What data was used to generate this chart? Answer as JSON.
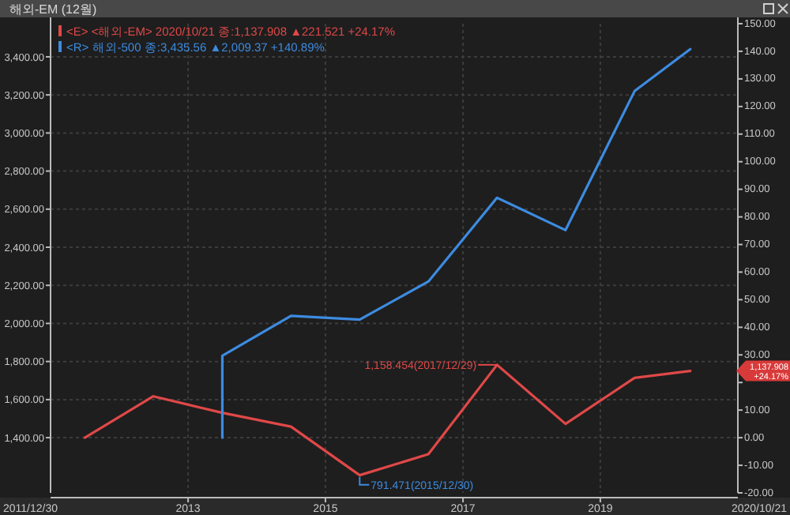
{
  "chart_data": {
    "type": "line",
    "title": "해외-EM (12월)",
    "x": [
      "2011-12-30",
      "2012-12-28",
      "2013-12-30",
      "2014-12-30",
      "2015-12-30",
      "2016-12-29",
      "2017-12-29",
      "2018-12-28",
      "2019-12-30",
      "2020-10-21"
    ],
    "series": [
      {
        "name": "<E> <해외-EM> 2020/10/21 종:1,137.908 ▲221.521 +24.17%",
        "color": "#e04848",
        "axis": "y2",
        "values": [
          0,
          15,
          9,
          4,
          -13.6,
          -6,
          26.4,
          5,
          21.7,
          24.2
        ]
      },
      {
        "name": "<R> 해외-500 종:3,435.56 ▲2,009.37 +140.89%",
        "color": "#3d8be0",
        "x": [
          "2013-12-30",
          "2013-12-30",
          "2014-12-30",
          "2015-12-30",
          "2016-12-29",
          "2017-12-29",
          "2018-12-28",
          "2019-12-30",
          "2020-10-21"
        ],
        "values": [
          1400,
          1830,
          2040,
          2020,
          2220,
          2660,
          2490,
          3220,
          3440
        ]
      }
    ],
    "xlim": [
      "2011-07-01",
      "2021-07-01"
    ],
    "xticks": [
      {
        "value": "2013-07-01",
        "label": "2013"
      },
      {
        "value": "2015-07-01",
        "label": "2015"
      },
      {
        "value": "2017-07-01",
        "label": "2017"
      },
      {
        "value": "2019-07-01",
        "label": "2019"
      }
    ],
    "ylim": [
      1110,
      3574
    ],
    "yticks": [
      {
        "value": 1400,
        "label": "1,400.00"
      },
      {
        "value": 1600,
        "label": "1,600.00"
      },
      {
        "value": 1800,
        "label": "1,800.00"
      },
      {
        "value": 2000,
        "label": "2,000.00"
      },
      {
        "value": 2200,
        "label": "2,200.00"
      },
      {
        "value": 2400,
        "label": "2,400.00"
      },
      {
        "value": 2600,
        "label": "2,600.00"
      },
      {
        "value": 2800,
        "label": "2,800.00"
      },
      {
        "value": 3000,
        "label": "3,000.00"
      },
      {
        "value": 3200,
        "label": "3,200.00"
      },
      {
        "value": 3400,
        "label": "3,400.00"
      }
    ],
    "y2lim": [
      -20,
      150
    ],
    "y2ticks": [
      {
        "value": -20,
        "label": "-20.00"
      },
      {
        "value": -10,
        "label": "-10.00"
      },
      {
        "value": 0,
        "label": "0.00"
      },
      {
        "value": 10,
        "label": "10.00"
      },
      {
        "value": 20,
        "label": null
      },
      {
        "value": 30,
        "label": "30.00"
      },
      {
        "value": 40,
        "label": "40.00"
      },
      {
        "value": 50,
        "label": "50.00"
      },
      {
        "value": 60,
        "label": "60.00"
      },
      {
        "value": 70,
        "label": "70.00"
      },
      {
        "value": 80,
        "label": "80.00"
      },
      {
        "value": 90,
        "label": "90.00"
      },
      {
        "value": 100,
        "label": "100.00"
      },
      {
        "value": 110,
        "label": "110.00"
      },
      {
        "value": 120,
        "label": "120.00"
      },
      {
        "value": 130,
        "label": "130.00"
      },
      {
        "value": 140,
        "label": "140.00"
      },
      {
        "value": 150,
        "label": "150.00"
      }
    ],
    "annotations": [
      "1,158.454(2017/12/29)",
      "791.471(2015/12/30)",
      "1,137.908 +24.17%",
      "2011/12/30",
      "2020/10/21"
    ],
    "grid": true,
    "legend": "top left",
    "marker": "none",
    "line_style": "solid"
  }
}
